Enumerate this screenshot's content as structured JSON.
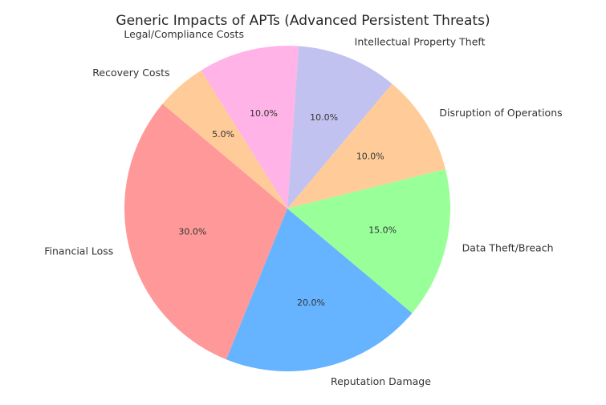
{
  "chart_data": {
    "type": "pie",
    "title": "Generic Impacts of APTs (Advanced Persistent Threats)",
    "start_angle_deg": 140,
    "direction": "counterclockwise",
    "slices": [
      {
        "label": "Financial Loss",
        "value": 30,
        "pct_label": "30.0%",
        "color": "#ff9999"
      },
      {
        "label": "Reputation Damage",
        "value": 20,
        "pct_label": "20.0%",
        "color": "#66b3ff"
      },
      {
        "label": "Data Theft/Breach",
        "value": 15,
        "pct_label": "15.0%",
        "color": "#99ff99"
      },
      {
        "label": "Disruption of Operations",
        "value": 10,
        "pct_label": "10.0%",
        "color": "#ffcc99"
      },
      {
        "label": "Intellectual Property Theft",
        "value": 10,
        "pct_label": "10.0%",
        "color": "#c2c2f0"
      },
      {
        "label": "Legal/Compliance Costs",
        "value": 10,
        "pct_label": "10.0%",
        "color": "#ffb3e6"
      },
      {
        "label": "Recovery Costs",
        "value": 5,
        "pct_label": "5.0%",
        "color": "#ffcc99"
      }
    ]
  }
}
